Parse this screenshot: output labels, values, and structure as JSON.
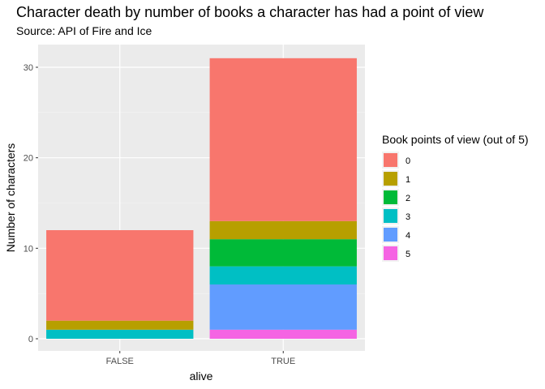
{
  "chart_data": {
    "type": "bar",
    "stacked": true,
    "title": "Character death by number of books a character has had a point of view",
    "subtitle": "Source: API of Fire and Ice",
    "xlabel": "alive",
    "ylabel": "Number of characters",
    "categories": [
      "FALSE",
      "TRUE"
    ],
    "ylim": [
      0,
      33
    ],
    "yticks": [
      0,
      10,
      20,
      30
    ],
    "grid": true,
    "legend": {
      "title": "Book points of view (out of 5)",
      "placement": "right"
    },
    "series": [
      {
        "name": "0",
        "color": "#F8766D",
        "values": [
          10,
          18
        ]
      },
      {
        "name": "1",
        "color": "#B79F00",
        "values": [
          1,
          2
        ]
      },
      {
        "name": "2",
        "color": "#00BA38",
        "values": [
          0,
          3
        ]
      },
      {
        "name": "3",
        "color": "#00BFC4",
        "values": [
          1,
          2
        ]
      },
      {
        "name": "4",
        "color": "#619CFF",
        "values": [
          0,
          5
        ]
      },
      {
        "name": "5",
        "color": "#F564E3",
        "values": [
          0,
          1
        ]
      }
    ]
  }
}
